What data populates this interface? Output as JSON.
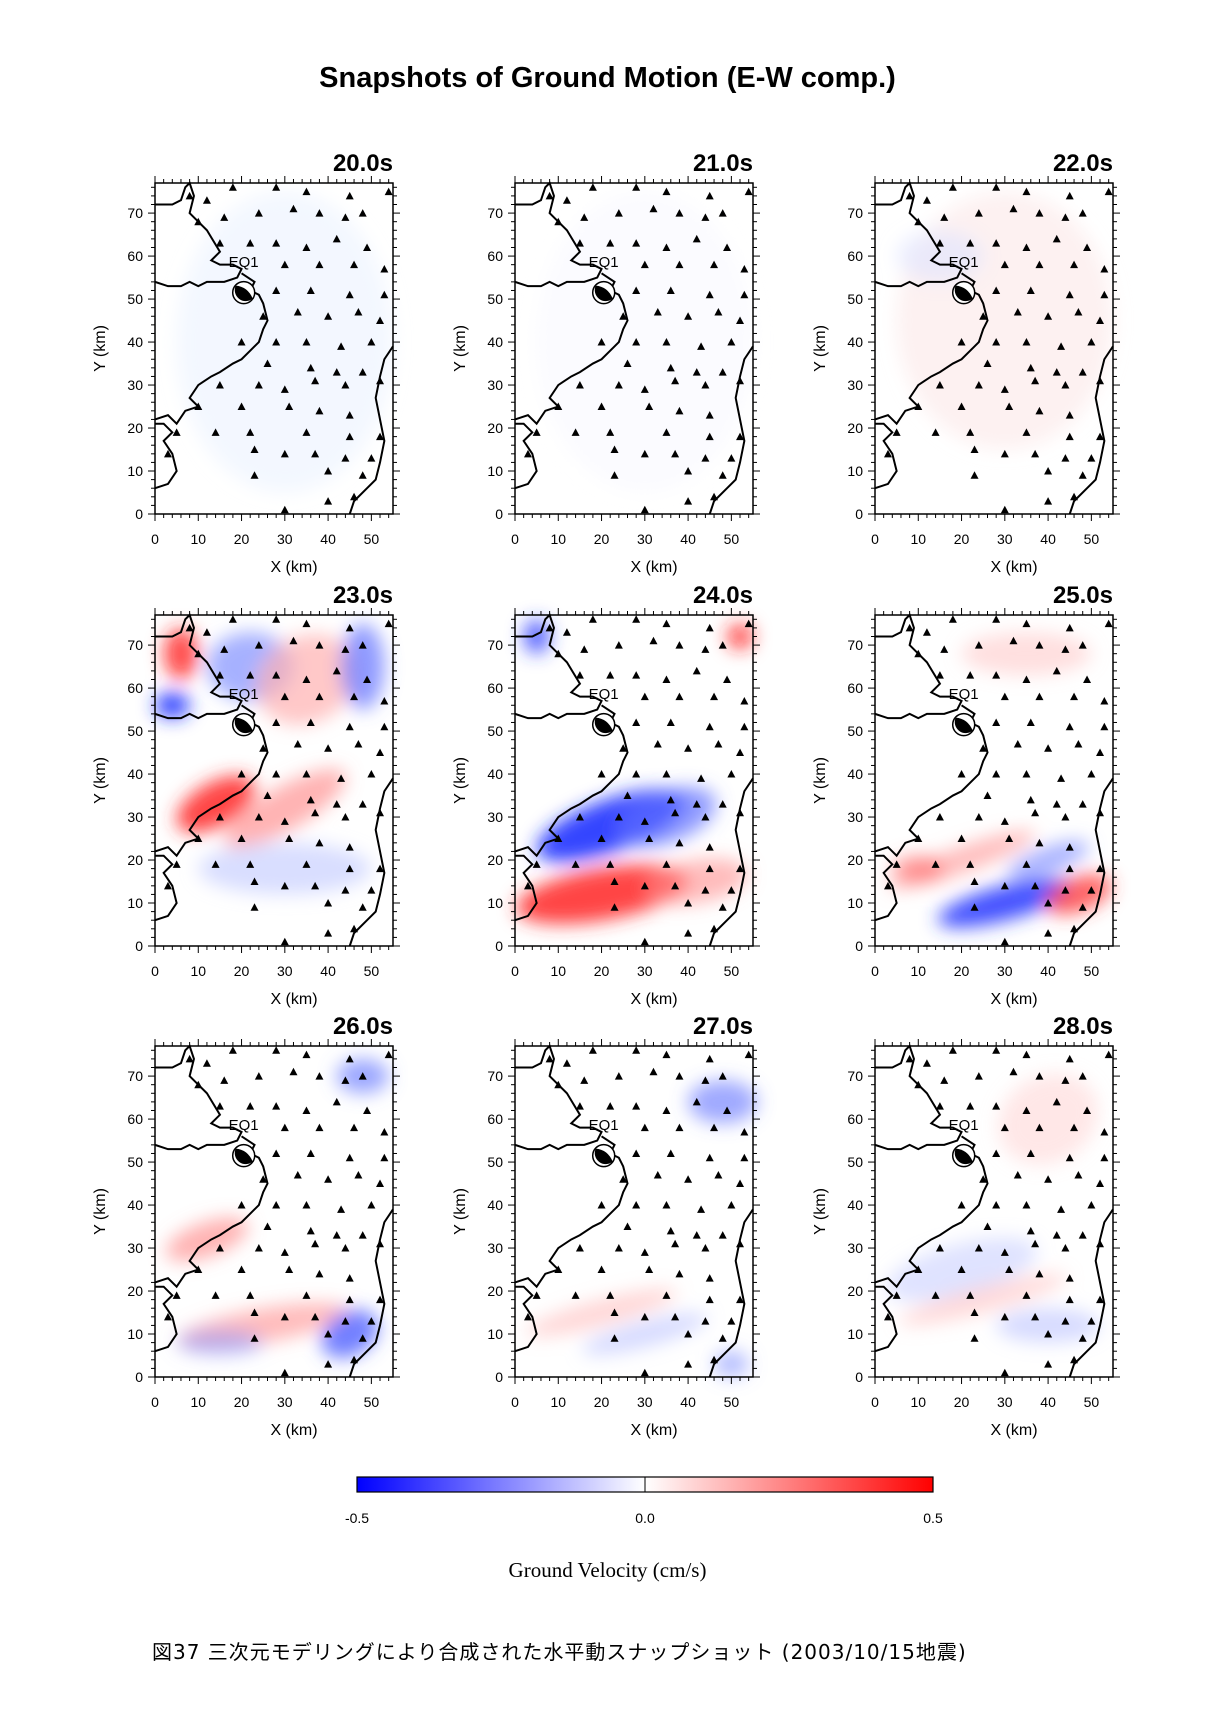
{
  "figure": {
    "title": "Snapshots of Ground Motion (E-W comp.)",
    "caption": "図37 三次元モデリングにより合成された水平動スナップショット (2003/10/15地震)",
    "colors": {
      "negative": "#0000ff",
      "zero": "#ffffff",
      "positive": "#ff0000"
    }
  },
  "chart_data": {
    "type": "heatmap",
    "xlabel": "X (km)",
    "ylabel": "Y (km)",
    "xlim": [
      0,
      55
    ],
    "ylim": [
      0,
      77
    ],
    "xticks": [
      "0",
      "10",
      "20",
      "30",
      "40",
      "50"
    ],
    "yticks": [
      "0",
      "10",
      "20",
      "30",
      "40",
      "50",
      "60",
      "70"
    ],
    "event_label": "EQ1",
    "panels": [
      {
        "time": "20.0s"
      },
      {
        "time": "21.0s"
      },
      {
        "time": "22.0s"
      },
      {
        "time": "23.0s"
      },
      {
        "time": "24.0s"
      },
      {
        "time": "25.0s"
      },
      {
        "time": "26.0s"
      },
      {
        "time": "27.0s"
      },
      {
        "time": "28.0s"
      }
    ],
    "colorbar": {
      "label": "Ground Velocity (cm/s)",
      "range": [
        -0.5,
        0.5
      ],
      "ticks": [
        "-0.5",
        "0.0",
        "0.5"
      ]
    },
    "stations": [
      [
        8,
        74
      ],
      [
        12,
        73
      ],
      [
        18,
        76
      ],
      [
        28,
        76
      ],
      [
        35,
        75
      ],
      [
        45,
        74
      ],
      [
        54,
        75
      ],
      [
        10,
        68
      ],
      [
        16,
        69
      ],
      [
        24,
        70
      ],
      [
        32,
        71
      ],
      [
        38,
        70
      ],
      [
        44,
        69
      ],
      [
        48,
        70
      ],
      [
        15,
        63
      ],
      [
        22,
        63
      ],
      [
        28,
        63
      ],
      [
        35,
        62
      ],
      [
        42,
        64
      ],
      [
        49,
        62
      ],
      [
        30,
        58
      ],
      [
        38,
        58
      ],
      [
        46,
        58
      ],
      [
        53,
        57
      ],
      [
        28,
        52
      ],
      [
        36,
        52
      ],
      [
        45,
        51
      ],
      [
        53,
        51
      ],
      [
        25,
        46
      ],
      [
        33,
        47
      ],
      [
        40,
        46
      ],
      [
        47,
        47
      ],
      [
        52,
        45
      ],
      [
        20,
        40
      ],
      [
        28,
        40
      ],
      [
        35,
        40
      ],
      [
        43,
        39
      ],
      [
        50,
        40
      ],
      [
        26,
        35
      ],
      [
        36,
        34
      ],
      [
        42,
        33
      ],
      [
        48,
        33
      ],
      [
        15,
        30
      ],
      [
        24,
        30
      ],
      [
        30,
        29
      ],
      [
        37,
        31
      ],
      [
        44,
        30
      ],
      [
        52,
        31
      ],
      [
        10,
        25
      ],
      [
        20,
        25
      ],
      [
        31,
        25
      ],
      [
        38,
        24
      ],
      [
        45,
        23
      ],
      [
        5,
        19
      ],
      [
        14,
        19
      ],
      [
        22,
        19
      ],
      [
        35,
        19
      ],
      [
        45,
        18
      ],
      [
        52,
        18
      ],
      [
        3,
        14
      ],
      [
        23,
        15
      ],
      [
        30,
        14
      ],
      [
        37,
        14
      ],
      [
        44,
        13
      ],
      [
        50,
        13
      ],
      [
        23,
        9
      ],
      [
        40,
        10
      ],
      [
        48,
        9
      ],
      [
        30,
        1
      ],
      [
        40,
        3
      ],
      [
        46,
        4
      ]
    ]
  }
}
